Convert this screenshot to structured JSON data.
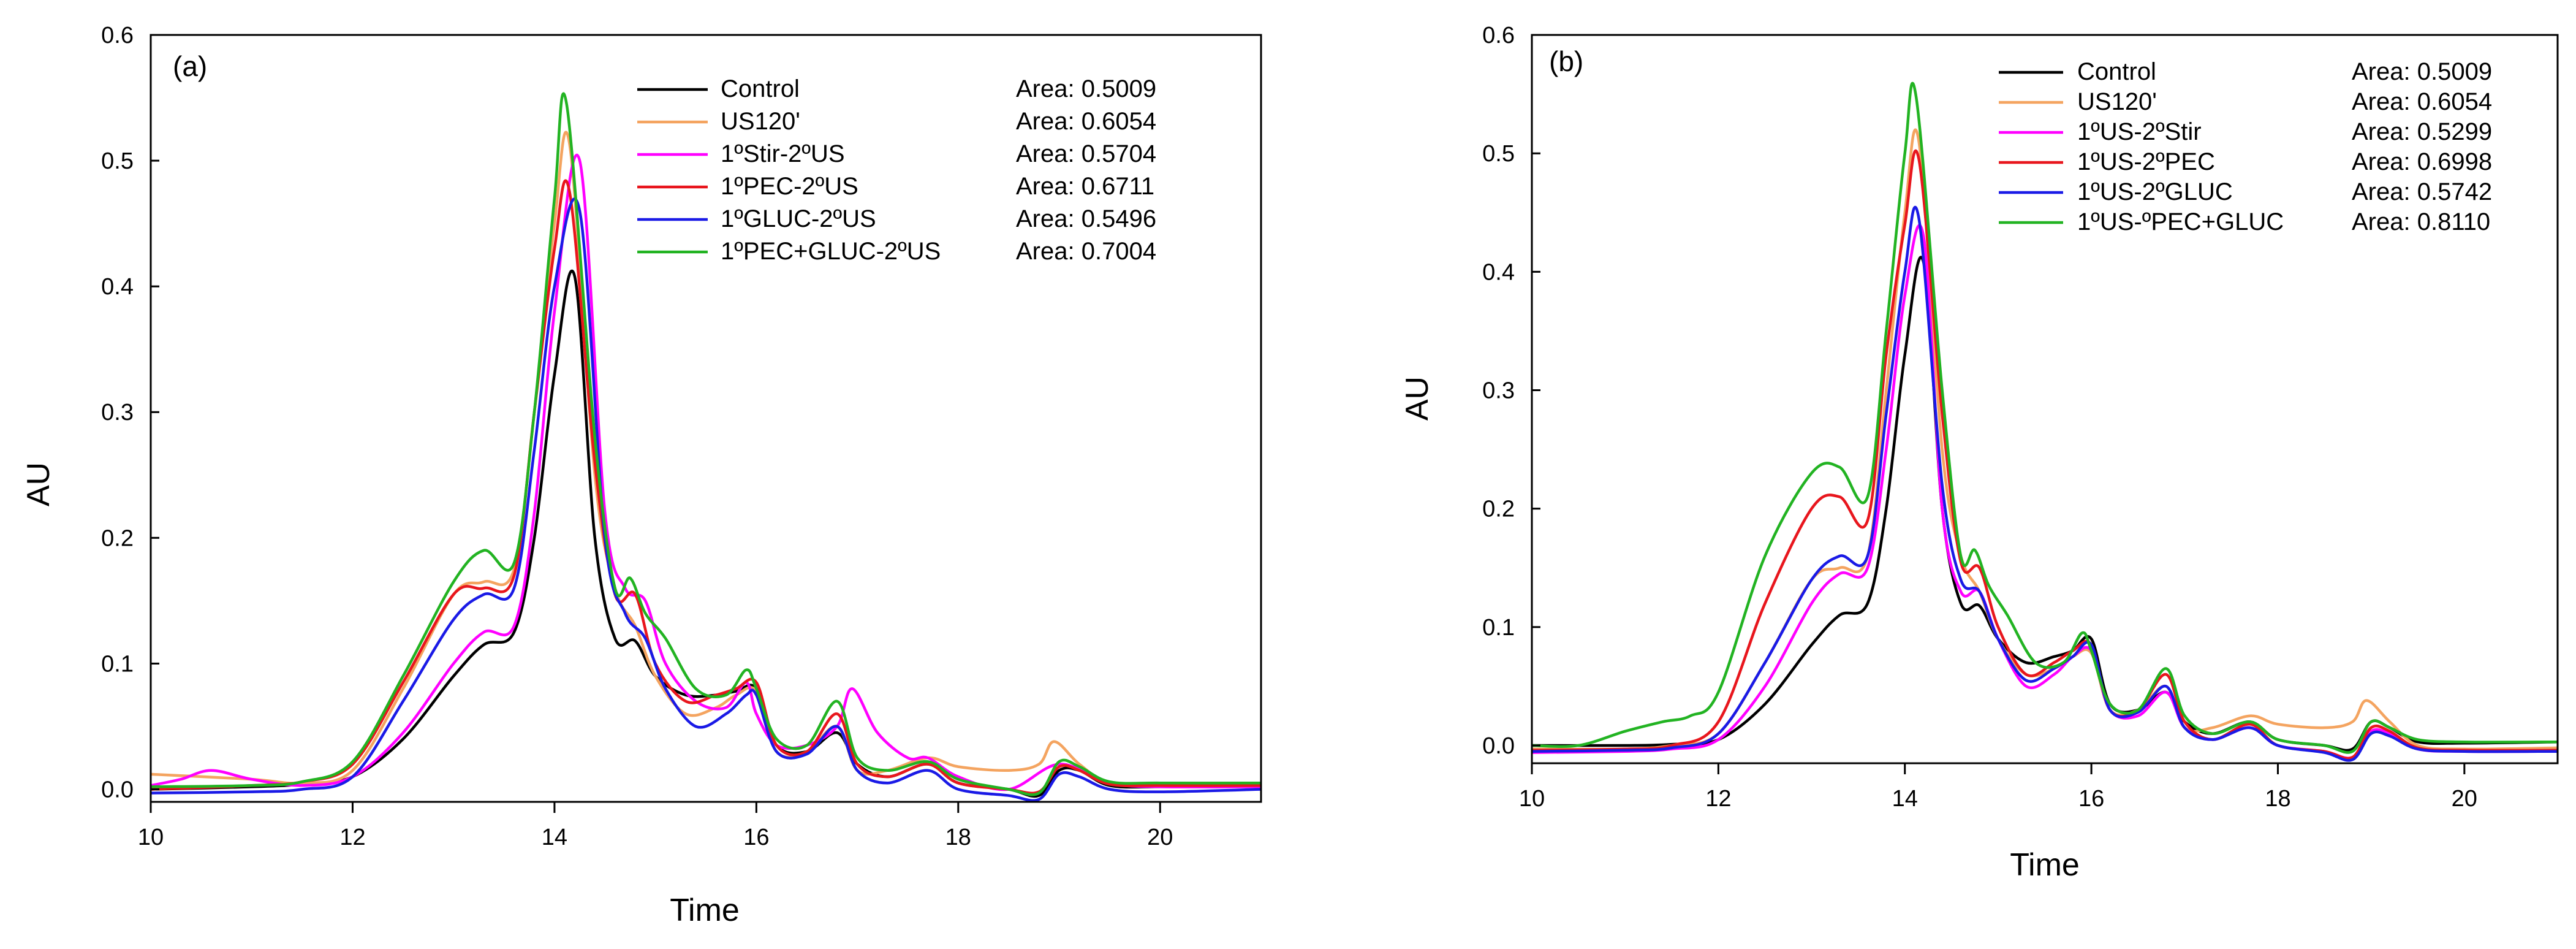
{
  "chart_data": [
    {
      "type": "line",
      "panel_label": "(a)",
      "xlabel": "Time",
      "ylabel": "AU",
      "xlim": [
        10,
        21
      ],
      "ylim": [
        -0.01,
        0.6
      ],
      "xticks": [
        10,
        12,
        14,
        16,
        18,
        20
      ],
      "yticks": [
        0.0,
        0.1,
        0.2,
        0.3,
        0.4,
        0.5,
        0.6
      ],
      "ytick_labels": [
        "0.0",
        "0.1",
        "0.2",
        "0.3",
        "0.4",
        "0.5",
        "0.6"
      ],
      "legend_position": "top-right",
      "series": [
        {
          "name": "Control",
          "area_text": "Area:  0.5009",
          "color": "#000000",
          "x": [
            10,
            11,
            11.5,
            12,
            12.5,
            13,
            13.3,
            13.6,
            13.8,
            14.0,
            14.2,
            14.4,
            14.6,
            14.8,
            15.0,
            15.3,
            15.6,
            15.8,
            16.0,
            16.2,
            16.5,
            16.8,
            17.0,
            17.3,
            17.7,
            18.0,
            18.5,
            18.8,
            19.0,
            19.2,
            19.5,
            20.0,
            21.0
          ],
          "y": [
            0.0,
            0.002,
            0.004,
            0.01,
            0.04,
            0.09,
            0.115,
            0.125,
            0.2,
            0.33,
            0.408,
            0.2,
            0.12,
            0.118,
            0.09,
            0.075,
            0.075,
            0.078,
            0.08,
            0.035,
            0.03,
            0.045,
            0.02,
            0.01,
            0.02,
            0.005,
            0.0,
            -0.005,
            0.015,
            0.015,
            0.003,
            0.002,
            0.003
          ]
        },
        {
          "name": "US120'",
          "area_text": "Area:  0.6054",
          "color": "#f4a460",
          "x": [
            10,
            11,
            11.5,
            12,
            12.5,
            13,
            13.3,
            13.6,
            13.8,
            14.0,
            14.15,
            14.4,
            14.6,
            14.8,
            15.0,
            15.3,
            15.6,
            15.8,
            16.0,
            16.2,
            16.5,
            16.8,
            17.0,
            17.3,
            17.7,
            18.0,
            18.5,
            18.8,
            18.95,
            19.2,
            19.5,
            20.0,
            21.0
          ],
          "y": [
            0.012,
            0.008,
            0.005,
            0.015,
            0.08,
            0.155,
            0.165,
            0.175,
            0.3,
            0.45,
            0.513,
            0.25,
            0.16,
            0.13,
            0.09,
            0.06,
            0.065,
            0.075,
            0.078,
            0.03,
            0.03,
            0.05,
            0.015,
            0.015,
            0.025,
            0.018,
            0.015,
            0.02,
            0.038,
            0.02,
            0.005,
            0.005,
            0.005
          ]
        },
        {
          "name": "1ºStir-2ºUS",
          "area_text": "Area:  0.5704",
          "color": "#ff00ff",
          "x": [
            10,
            10.3,
            10.6,
            11.0,
            11.5,
            12,
            12.5,
            13,
            13.3,
            13.6,
            13.8,
            14.0,
            14.25,
            14.5,
            14.7,
            14.9,
            15.1,
            15.4,
            15.7,
            15.9,
            16.0,
            16.2,
            16.5,
            16.8,
            16.95,
            17.2,
            17.5,
            17.7,
            18.0,
            18.5,
            19.0,
            19.5,
            20.0,
            21.0
          ],
          "y": [
            0.003,
            0.008,
            0.015,
            0.008,
            0.003,
            0.01,
            0.045,
            0.1,
            0.125,
            0.13,
            0.22,
            0.38,
            0.5,
            0.22,
            0.16,
            0.15,
            0.1,
            0.07,
            0.065,
            0.085,
            0.06,
            0.035,
            0.035,
            0.05,
            0.08,
            0.045,
            0.025,
            0.025,
            0.01,
            0.0,
            0.02,
            0.005,
            0.002,
            0.002
          ]
        },
        {
          "name": "1ºPEC-2ºUS",
          "area_text": "Area:  0.6711",
          "color": "#e8161d",
          "x": [
            10,
            11,
            11.5,
            12,
            12.5,
            13,
            13.3,
            13.6,
            13.8,
            14.0,
            14.15,
            14.4,
            14.6,
            14.8,
            15.0,
            15.3,
            15.6,
            15.8,
            16.0,
            16.2,
            16.5,
            16.8,
            17.0,
            17.3,
            17.7,
            18.0,
            18.5,
            18.8,
            19.0,
            19.2,
            19.5,
            20.0,
            21.0
          ],
          "y": [
            0.0,
            0.003,
            0.006,
            0.02,
            0.085,
            0.155,
            0.16,
            0.17,
            0.3,
            0.43,
            0.475,
            0.26,
            0.155,
            0.155,
            0.1,
            0.07,
            0.075,
            0.08,
            0.085,
            0.035,
            0.03,
            0.06,
            0.02,
            0.01,
            0.02,
            0.005,
            0.0,
            -0.002,
            0.018,
            0.015,
            0.004,
            0.003,
            0.003
          ]
        },
        {
          "name": "1ºGLUC-2ºUS",
          "area_text": "Area:  0.5496",
          "color": "#1a1ae6",
          "x": [
            10,
            11,
            11.5,
            12,
            12.5,
            13,
            13.3,
            13.6,
            13.8,
            14.0,
            14.25,
            14.5,
            14.7,
            14.9,
            15.1,
            15.4,
            15.7,
            15.9,
            16.0,
            16.2,
            16.5,
            16.8,
            17.0,
            17.3,
            17.7,
            18.0,
            18.5,
            18.8,
            19.0,
            19.2,
            19.5,
            20.0,
            21.0
          ],
          "y": [
            -0.003,
            -0.002,
            0.0,
            0.01,
            0.07,
            0.135,
            0.155,
            0.16,
            0.27,
            0.4,
            0.46,
            0.2,
            0.14,
            0.12,
            0.08,
            0.05,
            0.06,
            0.075,
            0.075,
            0.03,
            0.028,
            0.05,
            0.015,
            0.005,
            0.015,
            0.0,
            -0.005,
            -0.008,
            0.012,
            0.01,
            0.0,
            -0.002,
            0.0
          ]
        },
        {
          "name": "1ºPEC+GLUC-2ºUS",
          "area_text": "Area:  0.7004",
          "color": "#22b322",
          "x": [
            10,
            11,
            11.5,
            12,
            12.5,
            13,
            13.3,
            13.6,
            13.8,
            14.0,
            14.12,
            14.4,
            14.6,
            14.75,
            14.9,
            15.1,
            15.4,
            15.7,
            15.9,
            16.0,
            16.2,
            16.5,
            16.8,
            17.0,
            17.3,
            17.7,
            18.0,
            18.5,
            18.8,
            19.0,
            19.2,
            19.5,
            20.0,
            21.0
          ],
          "y": [
            0.002,
            0.003,
            0.006,
            0.022,
            0.09,
            0.165,
            0.19,
            0.18,
            0.3,
            0.47,
            0.545,
            0.28,
            0.16,
            0.168,
            0.14,
            0.12,
            0.08,
            0.075,
            0.095,
            0.08,
            0.04,
            0.035,
            0.07,
            0.025,
            0.015,
            0.022,
            0.008,
            0.0,
            -0.003,
            0.022,
            0.018,
            0.006,
            0.005,
            0.005
          ]
        }
      ]
    },
    {
      "type": "line",
      "panel_label": "(b)",
      "xlabel": "Time",
      "ylabel": "AU",
      "xlim": [
        10,
        21
      ],
      "ylim": [
        -0.015,
        0.6
      ],
      "xticks": [
        10,
        12,
        14,
        16,
        18,
        20
      ],
      "yticks": [
        0.0,
        0.1,
        0.2,
        0.3,
        0.4,
        0.5,
        0.6
      ],
      "ytick_labels": [
        "0.0",
        "0.1",
        "0.2",
        "0.3",
        "0.4",
        "0.5",
        "0.6"
      ],
      "legend_position": "top-right",
      "series": [
        {
          "name": "Control",
          "area_text": "Area:  0.5009",
          "color": "#000000",
          "x": [
            10,
            11,
            11.5,
            12,
            12.5,
            13,
            13.3,
            13.6,
            13.8,
            14.0,
            14.2,
            14.4,
            14.6,
            14.8,
            15.0,
            15.3,
            15.6,
            15.8,
            16.0,
            16.2,
            16.5,
            16.8,
            17.0,
            17.3,
            17.7,
            18.0,
            18.5,
            18.8,
            19.0,
            19.2,
            19.5,
            20.0,
            21.0
          ],
          "y": [
            0.0,
            0.0,
            0.001,
            0.005,
            0.035,
            0.085,
            0.11,
            0.12,
            0.2,
            0.33,
            0.408,
            0.2,
            0.12,
            0.118,
            0.09,
            0.07,
            0.075,
            0.08,
            0.09,
            0.035,
            0.03,
            0.045,
            0.02,
            0.01,
            0.02,
            0.005,
            0.0,
            -0.003,
            0.02,
            0.015,
            0.003,
            0.002,
            0.003
          ]
        },
        {
          "name": "US120'",
          "area_text": "Area:  0.6054",
          "color": "#f4a460",
          "x": [
            10,
            11,
            11.5,
            12,
            12.5,
            13,
            13.3,
            13.6,
            13.8,
            14.0,
            14.15,
            14.4,
            14.6,
            14.8,
            15.0,
            15.3,
            15.6,
            15.8,
            16.0,
            16.2,
            16.5,
            16.8,
            17.0,
            17.3,
            17.7,
            18.0,
            18.5,
            18.8,
            18.95,
            19.2,
            19.5,
            20.0,
            21.0
          ],
          "y": [
            -0.003,
            -0.003,
            0.0,
            0.01,
            0.07,
            0.14,
            0.15,
            0.16,
            0.3,
            0.45,
            0.51,
            0.25,
            0.16,
            0.13,
            0.09,
            0.06,
            0.065,
            0.075,
            0.078,
            0.03,
            0.03,
            0.05,
            0.015,
            0.015,
            0.025,
            0.018,
            0.015,
            0.02,
            0.038,
            0.02,
            0.0,
            -0.003,
            -0.002
          ]
        },
        {
          "name": "1ºUS-2ºStir",
          "area_text": "Area:  0.5299",
          "color": "#ff00ff",
          "x": [
            10,
            11,
            11.5,
            12,
            12.5,
            13,
            13.3,
            13.6,
            13.8,
            14.0,
            14.2,
            14.4,
            14.6,
            14.8,
            15.0,
            15.3,
            15.6,
            15.8,
            16.0,
            16.2,
            16.5,
            16.8,
            17.0,
            17.3,
            17.7,
            18.0,
            18.5,
            18.8,
            19.0,
            19.2,
            19.5,
            20.0,
            21.0
          ],
          "y": [
            -0.006,
            -0.005,
            -0.003,
            0.005,
            0.05,
            0.12,
            0.145,
            0.15,
            0.25,
            0.38,
            0.43,
            0.2,
            0.13,
            0.13,
            0.09,
            0.05,
            0.06,
            0.075,
            0.08,
            0.03,
            0.025,
            0.045,
            0.015,
            0.005,
            0.015,
            0.0,
            -0.005,
            -0.01,
            0.012,
            0.01,
            -0.003,
            -0.005,
            -0.005
          ]
        },
        {
          "name": "1ºUS-2ºPEC",
          "area_text": "Area:  0.6998",
          "color": "#e8161d",
          "x": [
            10,
            11,
            11.5,
            12,
            12.5,
            13,
            13.3,
            13.6,
            13.8,
            14.0,
            14.15,
            14.4,
            14.6,
            14.8,
            15.0,
            15.3,
            15.6,
            15.8,
            16.0,
            16.2,
            16.5,
            16.8,
            17.0,
            17.3,
            17.7,
            18.0,
            18.5,
            18.8,
            19.0,
            19.2,
            19.5,
            20.0,
            21.0
          ],
          "y": [
            -0.004,
            -0.003,
            0.0,
            0.02,
            0.12,
            0.2,
            0.21,
            0.19,
            0.33,
            0.44,
            0.495,
            0.28,
            0.155,
            0.15,
            0.1,
            0.06,
            0.07,
            0.08,
            0.085,
            0.03,
            0.03,
            0.06,
            0.02,
            0.005,
            0.018,
            0.0,
            -0.005,
            -0.01,
            0.015,
            0.012,
            -0.002,
            -0.004,
            -0.004
          ]
        },
        {
          "name": "1ºUS-2ºGLUC",
          "area_text": "Area:  0.5742",
          "color": "#1a1ae6",
          "x": [
            10,
            11,
            11.5,
            12,
            12.5,
            13,
            13.3,
            13.6,
            13.8,
            14.0,
            14.15,
            14.4,
            14.6,
            14.8,
            15.0,
            15.3,
            15.6,
            15.8,
            16.0,
            16.2,
            16.5,
            16.8,
            17.0,
            17.3,
            17.7,
            18.0,
            18.5,
            18.8,
            19.0,
            19.2,
            19.5,
            20.0,
            21.0
          ],
          "y": [
            -0.005,
            -0.004,
            -0.002,
            0.01,
            0.07,
            0.14,
            0.16,
            0.16,
            0.28,
            0.4,
            0.445,
            0.22,
            0.14,
            0.13,
            0.09,
            0.055,
            0.065,
            0.075,
            0.085,
            0.03,
            0.028,
            0.05,
            0.015,
            0.005,
            0.015,
            0.0,
            -0.006,
            -0.012,
            0.01,
            0.008,
            -0.003,
            -0.005,
            -0.005
          ]
        },
        {
          "name": "1ºUS-ºPEC+GLUC",
          "area_text": "Area:  0.8110",
          "color": "#22b322",
          "x": [
            10,
            10.5,
            11.0,
            11.4,
            11.7,
            12,
            12.5,
            13,
            13.3,
            13.6,
            13.8,
            14.0,
            14.12,
            14.4,
            14.6,
            14.75,
            14.9,
            15.1,
            15.4,
            15.7,
            15.9,
            16.0,
            16.2,
            16.5,
            16.8,
            17.0,
            17.3,
            17.7,
            18.0,
            18.5,
            18.8,
            19.0,
            19.2,
            19.5,
            20.0,
            21.0
          ],
          "y": [
            0.0,
            0.0,
            0.012,
            0.02,
            0.025,
            0.045,
            0.16,
            0.23,
            0.235,
            0.21,
            0.35,
            0.5,
            0.548,
            0.3,
            0.16,
            0.165,
            0.135,
            0.11,
            0.07,
            0.07,
            0.095,
            0.08,
            0.035,
            0.03,
            0.065,
            0.025,
            0.01,
            0.02,
            0.005,
            0.0,
            -0.005,
            0.02,
            0.015,
            0.005,
            0.003,
            0.003
          ]
        }
      ]
    }
  ]
}
